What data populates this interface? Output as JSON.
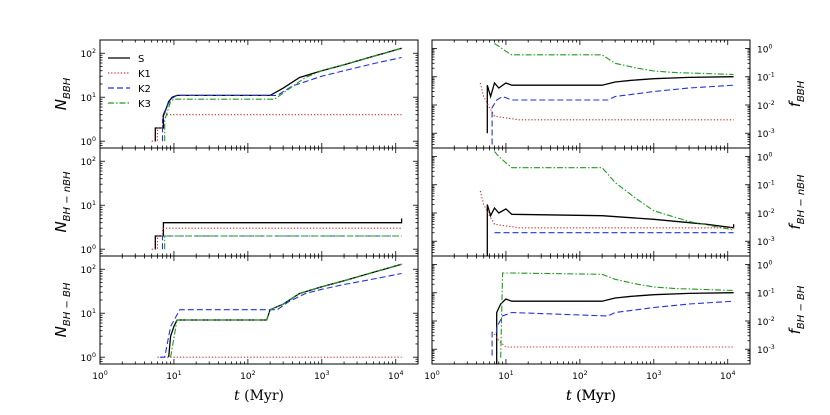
{
  "figure": {
    "x_label": "t (Myr)",
    "x_label_math": "t",
    "x_label_unit": " (Myr)",
    "x_ticks": [
      {
        "base": "10",
        "exp": "0"
      },
      {
        "base": "10",
        "exp": "1"
      },
      {
        "base": "10",
        "exp": "2"
      },
      {
        "base": "10",
        "exp": "3"
      },
      {
        "base": "10",
        "exp": "4"
      }
    ],
    "left_y_ticks": [
      {
        "base": "10",
        "exp": "0"
      },
      {
        "base": "10",
        "exp": "1"
      },
      {
        "base": "10",
        "exp": "2"
      }
    ],
    "right_y_ticks": [
      {
        "base": "10",
        "exp": "-3"
      },
      {
        "base": "10",
        "exp": "-2"
      },
      {
        "base": "10",
        "exp": "-1"
      },
      {
        "base": "10",
        "exp": "0"
      }
    ],
    "row_labels": [
      {
        "left_main": "N",
        "left_sub": "BBH",
        "right_main": "f",
        "right_sub": "BBH"
      },
      {
        "left_main": "N",
        "left_sub": "BH − nBH",
        "right_main": "f",
        "right_sub": "BH − nBH"
      },
      {
        "left_main": "N",
        "left_sub": "BH − BH",
        "right_main": "f",
        "right_sub": "BH − BH"
      }
    ],
    "legend": [
      {
        "label": "S",
        "color": "#000000",
        "dash": ""
      },
      {
        "label": "K1",
        "color": "#dd2222",
        "dash": "1.2,2"
      },
      {
        "label": "K2",
        "color": "#2233dd",
        "dash": "6,3"
      },
      {
        "label": "K3",
        "color": "#229922",
        "dash": "6,2,1.5,2"
      }
    ]
  },
  "chart_data": [
    {
      "type": "line",
      "panel": "row1-left",
      "xscale": "log",
      "yscale": "log",
      "xlim": [
        1,
        20000
      ],
      "ylim": [
        0.7,
        200
      ],
      "xlabel": "t (Myr)",
      "ylabel": "N_BBH",
      "series": [
        {
          "name": "S",
          "x": [
            5.6,
            5.6,
            7.2,
            7.2,
            8,
            8.5,
            9.5,
            11,
            13,
            200,
            300,
            500,
            1000,
            2000,
            5000,
            12000
          ],
          "y": [
            1,
            2,
            2,
            4,
            6,
            8,
            10,
            11,
            11,
            11,
            16,
            28,
            40,
            55,
            85,
            130
          ]
        },
        {
          "name": "K1",
          "x": [
            5,
            6,
            6,
            7,
            7,
            12000
          ],
          "y": [
            1,
            1,
            2,
            2,
            4,
            4
          ]
        },
        {
          "name": "K2",
          "x": [
            7,
            7,
            8,
            9,
            11,
            13,
            250,
            400,
            1000,
            2000,
            5000,
            12000
          ],
          "y": [
            1,
            3,
            6,
            9,
            11,
            11,
            11,
            18,
            30,
            40,
            58,
            80
          ]
        },
        {
          "name": "K3",
          "x": [
            7.5,
            7.5,
            9,
            10,
            230,
            350,
            600,
            1000,
            2000,
            5000,
            12000
          ],
          "y": [
            1,
            3,
            8,
            9,
            9,
            15,
            28,
            40,
            55,
            85,
            130
          ]
        }
      ]
    },
    {
      "type": "line",
      "panel": "row1-right",
      "xscale": "log",
      "yscale": "log",
      "xlim": [
        1,
        20000
      ],
      "ylim": [
        0.0003,
        2
      ],
      "xlabel": "t (Myr)",
      "ylabel": "f_BBH",
      "series": [
        {
          "name": "S",
          "x": [
            5.6,
            5.6,
            6.2,
            7,
            8,
            10,
            12,
            200,
            300,
            500,
            1000,
            3000,
            12000
          ],
          "y": [
            0.001,
            0.05,
            0.02,
            0.06,
            0.04,
            0.06,
            0.05,
            0.05,
            0.065,
            0.075,
            0.085,
            0.095,
            0.1
          ]
        },
        {
          "name": "K1",
          "x": [
            4.5,
            5,
            6,
            7,
            10,
            15,
            30,
            12000
          ],
          "y": [
            0.06,
            0.02,
            0.008,
            0.004,
            0.0035,
            0.003,
            0.003,
            0.003
          ]
        },
        {
          "name": "K2",
          "x": [
            6.5,
            6.5,
            7.5,
            9,
            12,
            240,
            300,
            600,
            1000,
            3000,
            12000
          ],
          "y": [
            0.0004,
            0.008,
            0.015,
            0.02,
            0.015,
            0.015,
            0.02,
            0.025,
            0.03,
            0.04,
            0.05
          ]
        },
        {
          "name": "K3",
          "x": [
            7,
            8,
            10,
            12,
            200,
            300,
            600,
            1000,
            2000,
            5000,
            12000
          ],
          "y": [
            1.5,
            1.2,
            0.8,
            0.6,
            0.6,
            0.3,
            0.2,
            0.16,
            0.14,
            0.13,
            0.12
          ]
        }
      ]
    },
    {
      "type": "line",
      "panel": "row2-left",
      "xscale": "log",
      "yscale": "log",
      "xlim": [
        1,
        20000
      ],
      "ylim": [
        0.7,
        200
      ],
      "xlabel": "t (Myr)",
      "ylabel": "N_BH-nBH",
      "series": [
        {
          "name": "S",
          "x": [
            5.6,
            5.6,
            7.2,
            7.2,
            12000,
            12000
          ],
          "y": [
            1,
            2,
            2,
            4,
            4,
            5
          ]
        },
        {
          "name": "K1",
          "x": [
            5,
            6,
            6,
            7,
            7,
            12000
          ],
          "y": [
            1,
            1,
            2,
            2,
            3,
            3
          ]
        },
        {
          "name": "K2",
          "x": [
            7,
            7,
            12000
          ],
          "y": [
            1,
            2,
            2
          ]
        },
        {
          "name": "K3",
          "x": [
            7.5,
            7.5,
            12000
          ],
          "y": [
            1,
            2,
            2
          ]
        }
      ]
    },
    {
      "type": "line",
      "panel": "row2-right",
      "xscale": "log",
      "yscale": "log",
      "xlim": [
        1,
        20000
      ],
      "ylim": [
        0.0003,
        2
      ],
      "xlabel": "t (Myr)",
      "ylabel": "f_BH-nBH",
      "series": [
        {
          "name": "S",
          "x": [
            5.6,
            5.6,
            6.2,
            7,
            8,
            10,
            12,
            200,
            1000,
            5000,
            12000,
            12000
          ],
          "y": [
            0.0003,
            0.02,
            0.008,
            0.015,
            0.01,
            0.014,
            0.009,
            0.008,
            0.006,
            0.004,
            0.003,
            0.004
          ]
        },
        {
          "name": "K1",
          "x": [
            4.5,
            5,
            6,
            7,
            10,
            15,
            100,
            12000
          ],
          "y": [
            0.06,
            0.02,
            0.008,
            0.004,
            0.0035,
            0.003,
            0.003,
            0.003
          ]
        },
        {
          "name": "K2",
          "x": [
            7,
            12000
          ],
          "y": [
            0.002,
            0.002
          ]
        },
        {
          "name": "K3",
          "x": [
            7,
            8,
            10,
            12,
            200,
            300,
            600,
            1000,
            3000,
            12000
          ],
          "y": [
            1.5,
            1.0,
            0.6,
            0.4,
            0.4,
            0.12,
            0.03,
            0.012,
            0.005,
            0.0025
          ]
        }
      ]
    },
    {
      "type": "line",
      "panel": "row3-left",
      "xscale": "log",
      "yscale": "log",
      "xlim": [
        1,
        20000
      ],
      "ylim": [
        0.7,
        200
      ],
      "xlabel": "t (Myr)",
      "ylabel": "N_BH-BH",
      "series": [
        {
          "name": "S",
          "x": [
            8.5,
            9,
            10,
            11,
            12,
            180,
            200,
            300,
            500,
            1000,
            2000,
            5000,
            12000
          ],
          "y": [
            1,
            3,
            5,
            7,
            7,
            7,
            12,
            16,
            28,
            40,
            55,
            85,
            130
          ]
        },
        {
          "name": "K1",
          "x": [
            6,
            12000
          ],
          "y": [
            1,
            1
          ]
        },
        {
          "name": "K2",
          "x": [
            6.5,
            7.5,
            9,
            12,
            250,
            350,
            600,
            1000,
            2000,
            5000,
            12000
          ],
          "y": [
            1,
            1,
            5,
            12,
            12,
            18,
            28,
            35,
            45,
            60,
            80
          ]
        },
        {
          "name": "K3",
          "x": [
            9,
            11,
            12,
            180,
            200,
            300,
            500,
            1000,
            2000,
            5000,
            12000
          ],
          "y": [
            1,
            7,
            7,
            7,
            12,
            16,
            28,
            40,
            55,
            85,
            130
          ]
        }
      ]
    },
    {
      "type": "line",
      "panel": "row3-right",
      "xscale": "log",
      "yscale": "log",
      "xlim": [
        1,
        20000
      ],
      "ylim": [
        0.0003,
        2
      ],
      "xlabel": "t (Myr)",
      "ylabel": "f_BH-BH",
      "series": [
        {
          "name": "S",
          "x": [
            7.5,
            7.5,
            8.5,
            10,
            12,
            200,
            300,
            500,
            1000,
            3000,
            12000
          ],
          "y": [
            0.0003,
            0.02,
            0.04,
            0.06,
            0.05,
            0.05,
            0.065,
            0.075,
            0.085,
            0.095,
            0.1
          ]
        },
        {
          "name": "K1",
          "x": [
            7,
            8,
            10,
            12000
          ],
          "y": [
            0.0035,
            0.002,
            0.0012,
            0.0012
          ]
        },
        {
          "name": "K2",
          "x": [
            6.5,
            6.5,
            7.5,
            7.5,
            9,
            12,
            240,
            300,
            600,
            1000,
            3000,
            12000
          ],
          "y": [
            0.0006,
            0.004,
            0.004,
            0.006,
            0.015,
            0.02,
            0.015,
            0.02,
            0.025,
            0.03,
            0.04,
            0.05
          ]
        },
        {
          "name": "K3",
          "x": [
            8.5,
            9,
            12,
            200,
            300,
            600,
            1000,
            2000,
            5000,
            12000
          ],
          "y": [
            0.0005,
            0.5,
            0.5,
            0.45,
            0.3,
            0.2,
            0.16,
            0.14,
            0.13,
            0.12
          ]
        }
      ]
    }
  ]
}
